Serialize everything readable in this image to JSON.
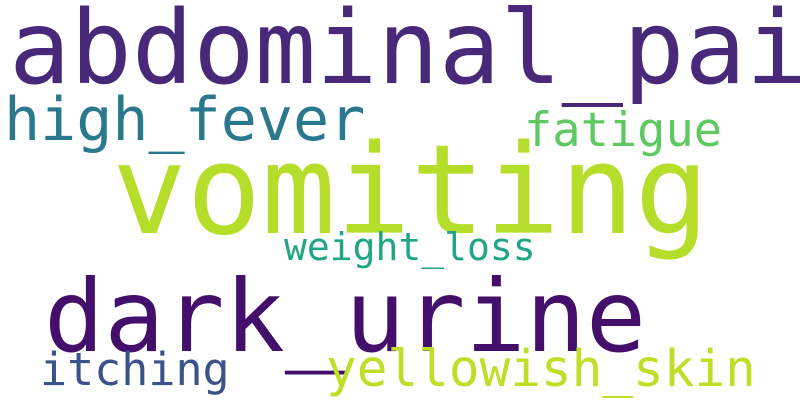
{
  "words": [
    {
      "id": "abdominal_pain",
      "text": "abdominal_pain",
      "color": "#482878"
    },
    {
      "id": "vomiting",
      "text": "vomiting",
      "color": "#b5de2b"
    },
    {
      "id": "dark_urine",
      "text": "dark_urine",
      "color": "#440f6b"
    },
    {
      "id": "high_fever",
      "text": "high_fever",
      "color": "#2a788e"
    },
    {
      "id": "fatigue",
      "text": "fatigue",
      "color": "#5ec962"
    },
    {
      "id": "weight_loss",
      "text": "weight_loss",
      "color": "#21a685"
    },
    {
      "id": "itching",
      "text": "itching",
      "color": "#3b528b"
    },
    {
      "id": "yellowish_skin",
      "text": "yellowish_skin",
      "color": "#bddf26"
    }
  ]
}
